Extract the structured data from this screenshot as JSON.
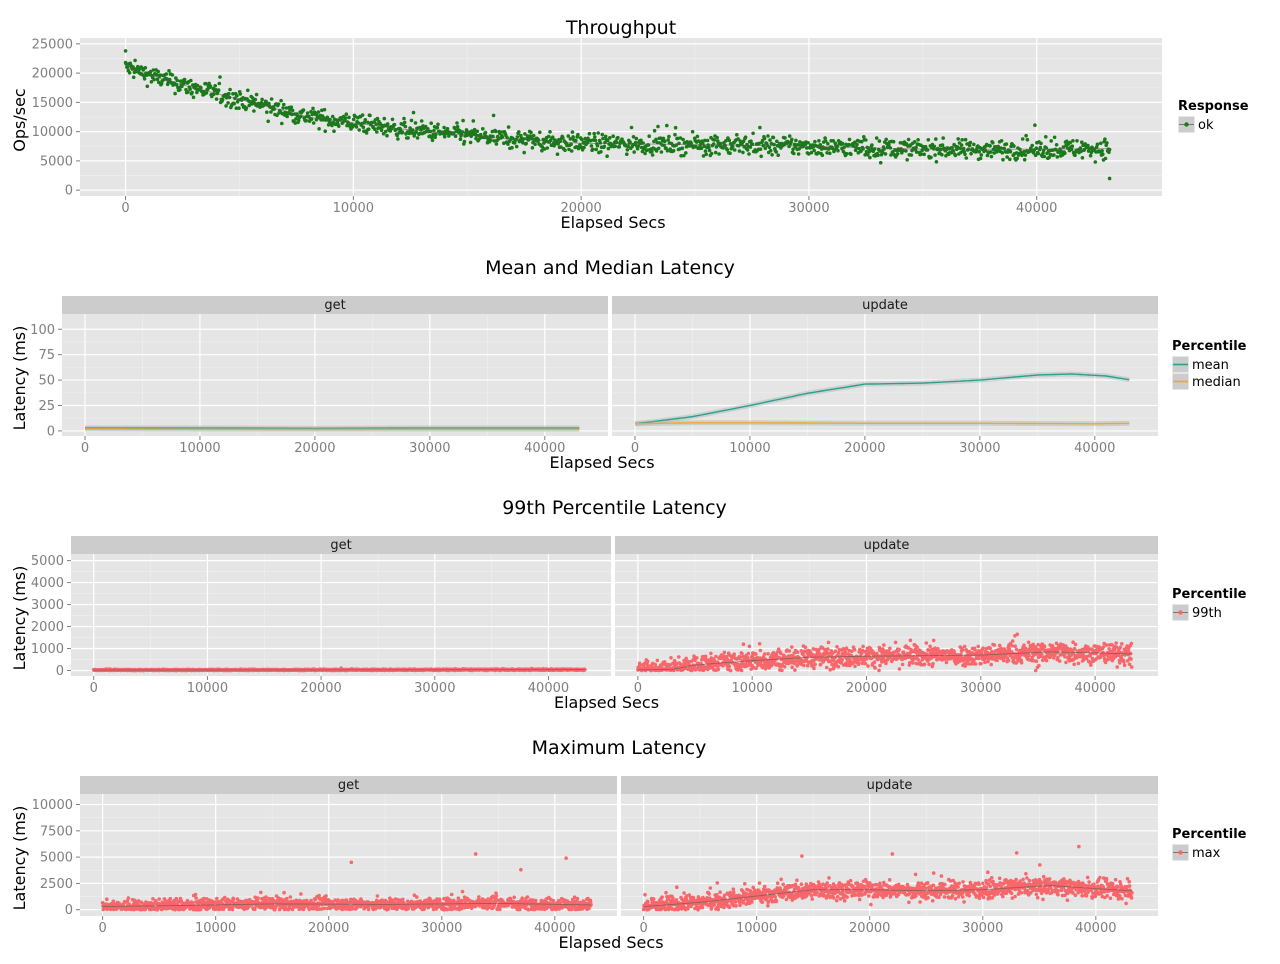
{
  "chart_data": [
    {
      "type": "scatter",
      "title": "Throughput",
      "xlabel": "Elapsed Secs",
      "ylabel": "Ops/sec",
      "xlim": [
        -2000,
        45500
      ],
      "ylim": [
        -1000,
        26000
      ],
      "xticks": [
        0,
        10000,
        20000,
        30000,
        40000
      ],
      "yticks": [
        0,
        5000,
        10000,
        15000,
        20000,
        25000
      ],
      "legend": {
        "title": "Response",
        "position": "right",
        "entries": [
          {
            "label": "ok",
            "color": "#1a7a1a"
          }
        ]
      },
      "series": [
        {
          "name": "ok",
          "color": "#1a7a1a",
          "points": 1450,
          "trend": [
            [
              0,
              21000
            ],
            [
              2000,
              18500
            ],
            [
              5000,
              15500
            ],
            [
              8000,
              12500
            ],
            [
              12000,
              10500
            ],
            [
              16000,
              9000
            ],
            [
              20000,
              8000
            ],
            [
              25000,
              7800
            ],
            [
              30000,
              7500
            ],
            [
              35000,
              7000
            ],
            [
              40000,
              7000
            ],
            [
              43200,
              7100
            ]
          ],
          "noise": 1100,
          "outliers": [
            [
              0,
              23800
            ],
            [
              43200,
              2000
            ]
          ]
        }
      ]
    },
    {
      "type": "line",
      "title": "Mean and Median Latency",
      "xlabel": "Elapsed Secs",
      "ylabel": "Latency (ms)",
      "xlim": [
        -2000,
        45500
      ],
      "ylim": [
        -5,
        115
      ],
      "xticks": [
        0,
        10000,
        20000,
        30000,
        40000
      ],
      "yticks": [
        0,
        25,
        50,
        75,
        100
      ],
      "legend": {
        "title": "Percentile",
        "position": "right",
        "entries": [
          {
            "label": "mean",
            "color": "#2ca08a"
          },
          {
            "label": "median",
            "color": "#f0a830"
          }
        ]
      },
      "panels": [
        {
          "name": "get",
          "series": [
            {
              "name": "mean",
              "color": "#2ca08a",
              "x": [
                0,
                10000,
                20000,
                30000,
                43200
              ],
              "y": [
                3,
                3,
                2.5,
                3,
                3
              ]
            },
            {
              "name": "median",
              "color": "#f0a830",
              "x": [
                0,
                10000,
                20000,
                30000,
                43200
              ],
              "y": [
                2,
                1.5,
                1.5,
                1.5,
                1.5
              ]
            }
          ]
        },
        {
          "name": "update",
          "series": [
            {
              "name": "mean",
              "color": "#2ca08a",
              "x": [
                0,
                5000,
                10000,
                15000,
                20000,
                25000,
                30000,
                35000,
                38000,
                41000,
                43200
              ],
              "y": [
                7,
                14,
                25,
                37,
                46,
                47,
                50,
                55,
                56,
                54,
                50
              ]
            },
            {
              "name": "median",
              "color": "#f0a830",
              "x": [
                0,
                5000,
                10000,
                20000,
                30000,
                40000,
                43200
              ],
              "y": [
                7,
                8,
                8,
                7.5,
                7.5,
                7,
                7.5
              ]
            }
          ]
        }
      ]
    },
    {
      "type": "scatter",
      "title": "99th Percentile Latency",
      "xlabel": "Elapsed Secs",
      "ylabel": "Latency (ms)",
      "xlim": [
        -2000,
        45500
      ],
      "ylim": [
        -250,
        5300
      ],
      "xticks": [
        0,
        10000,
        20000,
        30000,
        40000
      ],
      "yticks": [
        0,
        1000,
        2000,
        3000,
        4000,
        5000
      ],
      "legend": {
        "title": "Percentile",
        "position": "right",
        "entries": [
          {
            "label": "99th",
            "color": "#f8676b"
          }
        ]
      },
      "panels": [
        {
          "name": "get",
          "color": "#f8676b",
          "points": 1400,
          "trend": [
            [
              0,
              20
            ],
            [
              43200,
              40
            ]
          ],
          "noise": 20
        },
        {
          "name": "update",
          "color": "#f8676b",
          "points": 1400,
          "trend": [
            [
              0,
              30
            ],
            [
              3000,
              50
            ],
            [
              5000,
              250
            ],
            [
              10000,
              450
            ],
            [
              15000,
              600
            ],
            [
              20000,
              650
            ],
            [
              30000,
              700
            ],
            [
              36000,
              850
            ],
            [
              40000,
              800
            ],
            [
              43200,
              750
            ]
          ],
          "noise": 320
        }
      ]
    },
    {
      "type": "scatter",
      "title": "Maximum Latency",
      "xlabel": "Elapsed Secs",
      "ylabel": "Latency (ms)",
      "xlim": [
        -2000,
        45500
      ],
      "ylim": [
        -600,
        11000
      ],
      "xticks": [
        0,
        10000,
        20000,
        30000,
        40000
      ],
      "yticks": [
        0,
        2500,
        5000,
        7500,
        10000
      ],
      "legend": {
        "title": "Percentile",
        "position": "right",
        "entries": [
          {
            "label": "max",
            "color": "#f8676b"
          }
        ]
      },
      "panels": [
        {
          "name": "get",
          "color": "#f8676b",
          "points": 1400,
          "trend": [
            [
              0,
              300
            ],
            [
              7000,
              400
            ],
            [
              15000,
              550
            ],
            [
              25000,
              500
            ],
            [
              35000,
              600
            ],
            [
              43200,
              450
            ]
          ],
          "noise": 420,
          "outliers": [
            [
              22000,
              4500
            ],
            [
              33000,
              5300
            ],
            [
              41000,
              4900
            ],
            [
              37000,
              3800
            ]
          ]
        },
        {
          "name": "update",
          "color": "#f8676b",
          "points": 1400,
          "trend": [
            [
              0,
              300
            ],
            [
              5000,
              700
            ],
            [
              10000,
              1300
            ],
            [
              15000,
              1900
            ],
            [
              20000,
              1900
            ],
            [
              25000,
              1800
            ],
            [
              30000,
              1900
            ],
            [
              36000,
              2300
            ],
            [
              40000,
              2000
            ],
            [
              43200,
              1800
            ]
          ],
          "noise": 550,
          "outliers": [
            [
              38500,
              6000
            ],
            [
              33000,
              5400
            ],
            [
              22000,
              5300
            ],
            [
              14000,
              5100
            ]
          ]
        }
      ]
    }
  ]
}
